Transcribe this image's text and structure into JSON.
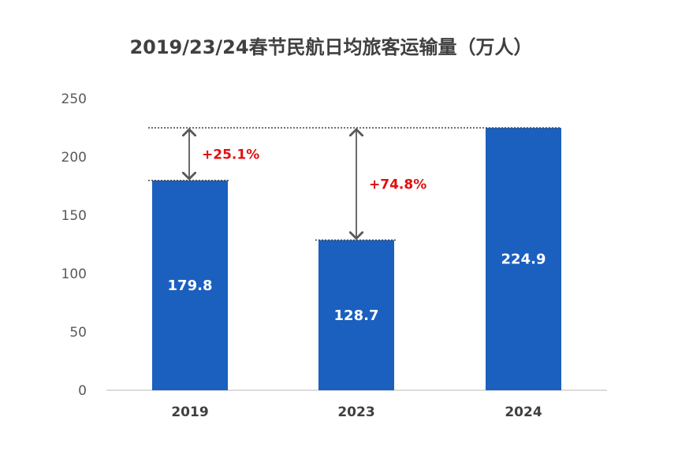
{
  "chart_data": {
    "type": "bar",
    "title": "2019/23/24春节民航日均旅客运输量（万人）",
    "categories": [
      "2019",
      "2023",
      "2024"
    ],
    "values": [
      179.8,
      128.7,
      224.9
    ],
    "data_labels": [
      "179.8",
      "128.7",
      "224.9"
    ],
    "ylim": [
      0,
      250
    ],
    "yticks": [
      0,
      50,
      100,
      150,
      200,
      250
    ],
    "xlabel": "",
    "ylabel": "",
    "grid": false,
    "legend": "none",
    "colors": {
      "bar": "#1b5fbf",
      "annotation": "#e01010",
      "arrow": "#595959",
      "axis": "#d0d0d0"
    },
    "annotations": [
      {
        "category": "2019",
        "from": 179.8,
        "to": 224.9,
        "label": "+25.1%"
      },
      {
        "category": "2023",
        "from": 128.7,
        "to": 224.9,
        "label": "+74.8%"
      }
    ]
  }
}
